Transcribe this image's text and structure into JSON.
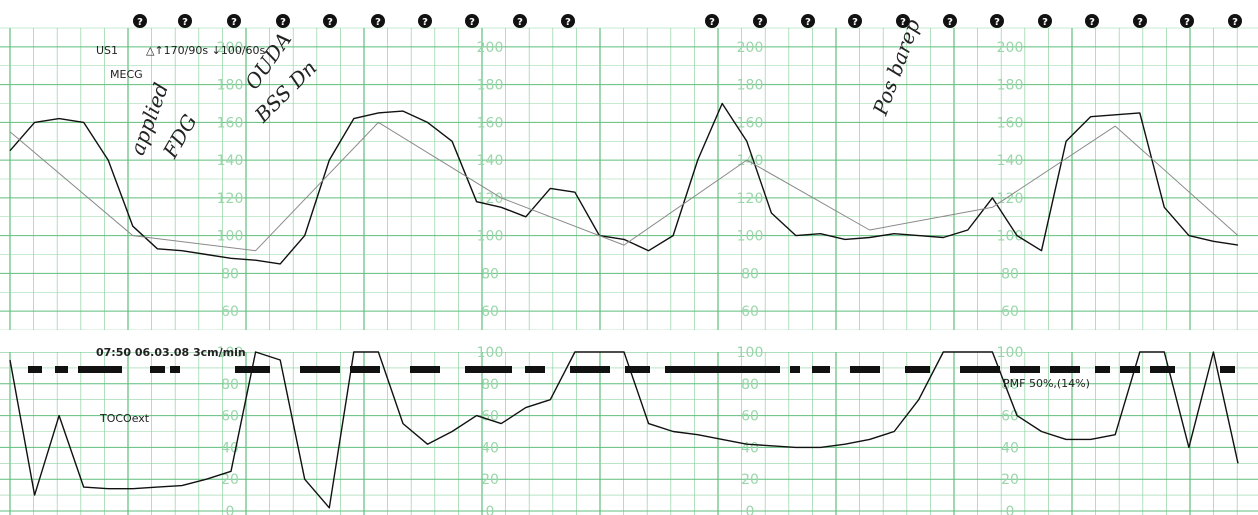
{
  "header": {
    "date_time": "07:50  06.03.08  3cm/min",
    "legend_us1": "US1",
    "alarm_limits": "△↑170/90s  ↓100/60s",
    "legend_mecg": "MECG",
    "toco_label": "TOCOext",
    "pmf_label": "PMF  50%,(14%)"
  },
  "annotations": {
    "note_left_a": "applied",
    "note_left_b": "FDG",
    "note_left_c": "OUDA",
    "note_left_d": "BSS Dn",
    "note_right": "Pos barep"
  },
  "colors": {
    "grid": "#8fd3a2",
    "grid_major": "#5fbf7c",
    "fhr_trace": "#111111",
    "mecg_trace": "#8a8a8a",
    "toco_trace": "#111111",
    "event_bar": "#111111",
    "scale_text": "#9ad6aa"
  },
  "chart_data": [
    {
      "type": "line",
      "title": "",
      "xlabel": "",
      "ylabel": "",
      "ylim": [
        50,
        210
      ],
      "y_ticks": [
        "200",
        "180",
        "160",
        "140",
        "120",
        "100",
        "80",
        "60"
      ],
      "grid": true,
      "series": [
        {
          "name": "US1",
          "x": [
            0,
            2,
            4,
            6,
            8,
            10,
            12,
            14,
            16,
            18,
            20,
            22,
            24,
            26,
            28,
            30,
            32,
            34,
            36,
            38,
            40,
            42,
            44,
            46,
            48,
            50,
            52,
            54,
            56,
            58,
            60,
            62,
            64,
            66,
            68,
            70,
            72,
            74,
            76,
            78,
            80,
            82,
            84,
            86,
            88,
            90,
            92,
            94,
            96,
            98,
            100
          ],
          "values": [
            145,
            160,
            162,
            160,
            140,
            105,
            93,
            92,
            90,
            88,
            87,
            85,
            100,
            140,
            162,
            165,
            166,
            160,
            150,
            118,
            115,
            110,
            125,
            123,
            100,
            98,
            92,
            100,
            140,
            170,
            150,
            112,
            100,
            101,
            98,
            99,
            101,
            100,
            99,
            103,
            120,
            100,
            92,
            150,
            163,
            164,
            165,
            115,
            100,
            97,
            95
          ]
        },
        {
          "name": "MECG",
          "x": [
            0,
            10,
            20,
            30,
            40,
            50,
            60,
            70,
            80,
            90,
            100
          ],
          "values": [
            155,
            100,
            92,
            160,
            120,
            95,
            140,
            103,
            115,
            158,
            100
          ]
        }
      ]
    },
    {
      "type": "line",
      "title": "",
      "xlabel": "",
      "ylabel": "",
      "ylim": [
        0,
        100
      ],
      "y_ticks": [
        "100",
        "80",
        "60",
        "40",
        "20",
        "0"
      ],
      "grid": true,
      "series": [
        {
          "name": "TOCOext",
          "x": [
            0,
            2,
            4,
            6,
            8,
            10,
            12,
            14,
            16,
            18,
            20,
            22,
            24,
            26,
            28,
            30,
            32,
            34,
            36,
            38,
            40,
            42,
            44,
            46,
            48,
            50,
            52,
            54,
            56,
            58,
            60,
            62,
            64,
            66,
            68,
            70,
            72,
            74,
            76,
            78,
            80,
            82,
            84,
            86,
            88,
            90,
            92,
            94,
            96,
            98,
            100
          ],
          "values": [
            95,
            10,
            60,
            15,
            14,
            14,
            15,
            16,
            20,
            25,
            100,
            95,
            20,
            2,
            100,
            100,
            55,
            42,
            50,
            60,
            55,
            65,
            70,
            100,
            100,
            100,
            55,
            50,
            48,
            45,
            42,
            41,
            40,
            40,
            42,
            45,
            50,
            70,
            100,
            100,
            100,
            60,
            50,
            45,
            45,
            48,
            100,
            100,
            40,
            100,
            30
          ]
        }
      ]
    }
  ]
}
